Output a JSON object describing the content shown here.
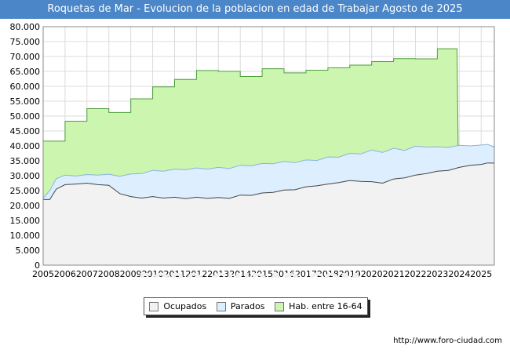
{
  "title": "Roquetas de Mar - Evolucion de la poblacion en edad de Trabajar Agosto de 2025",
  "source": "http://www.foro-ciudad.com",
  "watermark": "FORO-CIUDAD.COM",
  "chart_data": {
    "type": "area",
    "title": "Roquetas de Mar - Evolucion de la poblacion en edad de Trabajar Agosto de 2025",
    "xlabel": "",
    "ylabel": "",
    "ylim": [
      0,
      80000
    ],
    "y_ticks": [
      "0",
      "5.000",
      "10.000",
      "15.000",
      "20.000",
      "25.000",
      "30.000",
      "35.000",
      "40.000",
      "45.000",
      "50.000",
      "55.000",
      "60.000",
      "65.000",
      "70.000",
      "75.000",
      "80.000"
    ],
    "x_ticks": [
      "2005",
      "2006",
      "2007",
      "2008",
      "2009",
      "2010",
      "2011",
      "2012",
      "2013",
      "2014",
      "2015",
      "2016",
      "2017",
      "2018",
      "2019",
      "2020",
      "2021",
      "2022",
      "2023",
      "2024",
      "2025"
    ],
    "xlim": [
      2005,
      2025.6
    ],
    "grid": true,
    "legend_position": "bottom",
    "colors": {
      "ocupados_fill": "#f2f2f2",
      "ocupados_line": "#444444",
      "parados_fill": "#ddeeff",
      "parados_line": "#8ab4dd",
      "hab_fill": "#ccf5b0",
      "hab_line": "#4f9f3a",
      "title_bg": "#4a86c8"
    },
    "series": [
      {
        "name": "Hab. entre 16-64",
        "key": "hab",
        "x": [
          2005.0,
          2006.0,
          2006.0,
          2007.0,
          2007.0,
          2008.0,
          2008.0,
          2009.0,
          2009.0,
          2010.0,
          2010.0,
          2011.0,
          2011.0,
          2012.0,
          2012.0,
          2013.0,
          2013.0,
          2014.0,
          2014.0,
          2015.0,
          2015.0,
          2016.0,
          2016.0,
          2017.0,
          2017.0,
          2018.0,
          2018.0,
          2019.0,
          2019.0,
          2020.0,
          2020.0,
          2021.0,
          2021.0,
          2022.0,
          2022.0,
          2023.0,
          2023.0,
          2023.9,
          2023.95
        ],
        "values": [
          41600,
          41600,
          48300,
          48300,
          52500,
          52500,
          51200,
          51200,
          55800,
          55800,
          59800,
          59800,
          62300,
          62300,
          65300,
          65300,
          65000,
          65000,
          63300,
          63300,
          65900,
          65900,
          64500,
          64500,
          65400,
          65400,
          66200,
          66200,
          67100,
          67100,
          68300,
          68300,
          69300,
          69300,
          69200,
          69200,
          72600,
          72600,
          39500
        ]
      },
      {
        "name": "Parados",
        "key": "parados",
        "x": [
          2005.0,
          2005.3,
          2005.6,
          2006.0,
          2006.5,
          2007.0,
          2007.5,
          2008.0,
          2008.5,
          2009.0,
          2009.5,
          2010.0,
          2010.5,
          2011.0,
          2011.5,
          2012.0,
          2012.5,
          2013.0,
          2013.5,
          2014.0,
          2014.5,
          2015.0,
          2015.5,
          2016.0,
          2016.5,
          2017.0,
          2017.5,
          2018.0,
          2018.5,
          2019.0,
          2019.5,
          2020.0,
          2020.5,
          2021.0,
          2021.5,
          2022.0,
          2022.5,
          2023.0,
          2023.5,
          2024.0,
          2024.5,
          2025.0,
          2025.3,
          2025.6
        ],
        "values": [
          22500,
          25000,
          29000,
          30200,
          29900,
          30400,
          30200,
          30500,
          29800,
          30600,
          30700,
          31800,
          31500,
          32200,
          32000,
          32600,
          32200,
          32800,
          32400,
          33500,
          33300,
          34100,
          34000,
          34800,
          34400,
          35300,
          35100,
          36300,
          36200,
          37500,
          37300,
          38600,
          37800,
          39200,
          38500,
          39900,
          39600,
          39700,
          39500,
          40200,
          40000,
          40300,
          40500,
          39600
        ]
      },
      {
        "name": "Ocupados",
        "key": "ocupados",
        "x": [
          2005.0,
          2005.3,
          2005.6,
          2006.0,
          2006.5,
          2007.0,
          2007.5,
          2008.0,
          2008.5,
          2009.0,
          2009.5,
          2010.0,
          2010.5,
          2011.0,
          2011.5,
          2012.0,
          2012.5,
          2013.0,
          2013.5,
          2014.0,
          2014.5,
          2015.0,
          2015.5,
          2016.0,
          2016.5,
          2017.0,
          2017.5,
          2018.0,
          2018.5,
          2019.0,
          2019.5,
          2020.0,
          2020.5,
          2021.0,
          2021.5,
          2022.0,
          2022.5,
          2023.0,
          2023.5,
          2024.0,
          2024.5,
          2025.0,
          2025.3,
          2025.6
        ],
        "values": [
          22000,
          22000,
          25500,
          27000,
          27200,
          27500,
          27000,
          26800,
          24000,
          23000,
          22500,
          23000,
          22500,
          22800,
          22300,
          22800,
          22400,
          22700,
          22400,
          23500,
          23400,
          24200,
          24400,
          25200,
          25300,
          26300,
          26600,
          27200,
          27700,
          28400,
          28100,
          28000,
          27500,
          28900,
          29300,
          30200,
          30700,
          31500,
          31800,
          32800,
          33500,
          33800,
          34300,
          34200
        ]
      }
    ]
  },
  "legend": {
    "items": [
      {
        "label": "Ocupados"
      },
      {
        "label": "Parados"
      },
      {
        "label": "Hab. entre 16-64"
      }
    ]
  }
}
